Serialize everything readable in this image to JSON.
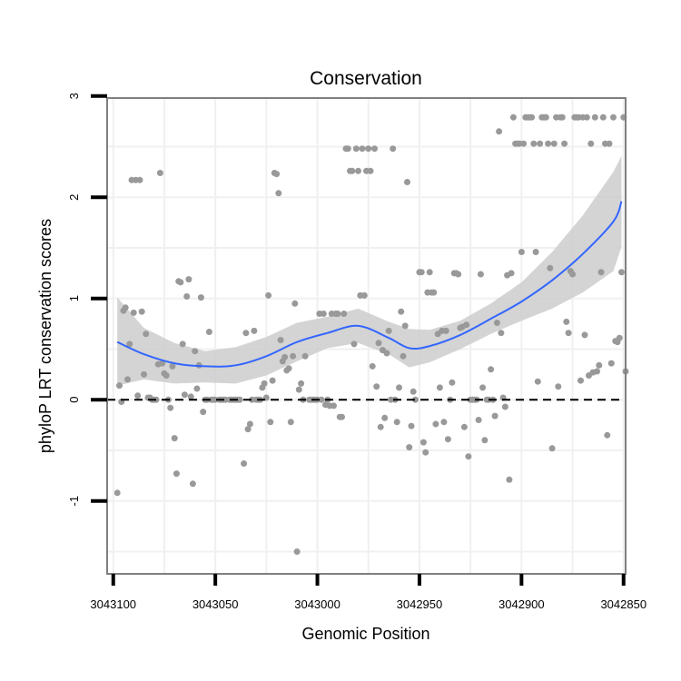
{
  "chart_data": {
    "type": "scatter",
    "title": "Conservation",
    "xlabel": "Genomic Position",
    "ylabel": "phyloP LRT conservation scores",
    "x_reversed": true,
    "xlim": [
      3043103,
      3042849
    ],
    "ylim": [
      -1.72,
      2.98
    ],
    "x_ticks": [
      3043100,
      3043050,
      3043000,
      3042950,
      3042900,
      3042850
    ],
    "x_tick_labels": [
      "3043100",
      "3043050",
      "3043000",
      "3042950",
      "3042900",
      "3042850"
    ],
    "y_ticks": [
      -1,
      0,
      1,
      2,
      3
    ],
    "y_tick_labels": [
      "-1",
      "0",
      "1",
      "2",
      "3"
    ],
    "reference_line": {
      "y": 0,
      "style": "dashed"
    },
    "grid": true,
    "colors": {
      "points": "#999999",
      "smooth_line": "#3366ff",
      "ribbon": "#cccccc",
      "panel_border": "#7f7f7f",
      "grid": "#f0f0f0",
      "reference_line": "#000000"
    },
    "smooth": {
      "x": [
        3043098,
        3043085,
        3043070,
        3043055,
        3043040,
        3043025,
        3043010,
        3042995,
        3042980,
        3042965,
        3042955,
        3042945,
        3042930,
        3042915,
        3042900,
        3042885,
        3042870,
        3042855,
        3042851
      ],
      "y": [
        0.57,
        0.45,
        0.36,
        0.33,
        0.34,
        0.43,
        0.57,
        0.66,
        0.73,
        0.61,
        0.51,
        0.53,
        0.64,
        0.8,
        0.97,
        1.18,
        1.44,
        1.76,
        1.96
      ],
      "lower": [
        0.14,
        0.2,
        0.16,
        0.17,
        0.16,
        0.24,
        0.38,
        0.51,
        0.56,
        0.45,
        0.32,
        0.37,
        0.5,
        0.65,
        0.78,
        0.9,
        1.06,
        1.27,
        1.51
      ],
      "upper": [
        1.01,
        0.71,
        0.56,
        0.48,
        0.52,
        0.62,
        0.76,
        0.82,
        0.9,
        0.77,
        0.7,
        0.69,
        0.78,
        0.95,
        1.16,
        1.46,
        1.82,
        2.25,
        2.41
      ]
    },
    "points": [
      [
        3043098,
        -0.92
      ],
      [
        3043097,
        0.14
      ],
      [
        3043096,
        -0.02
      ],
      [
        3043095,
        0.88
      ],
      [
        3043094,
        0.91
      ],
      [
        3043093,
        0.2
      ],
      [
        3043092,
        0.55
      ],
      [
        3043091,
        2.17
      ],
      [
        3043090,
        0.86
      ],
      [
        3043089,
        2.17
      ],
      [
        3043088,
        0.04
      ],
      [
        3043087,
        2.17
      ],
      [
        3043086,
        0.87
      ],
      [
        3043085,
        0.25
      ],
      [
        3043084,
        0.65
      ],
      [
        3043083,
        0.02
      ],
      [
        3043082,
        0.02
      ],
      [
        3043081,
        0.0
      ],
      [
        3043080,
        0.0
      ],
      [
        3043079,
        0.0
      ],
      [
        3043078,
        0.35
      ],
      [
        3043077,
        2.24
      ],
      [
        3043076,
        0.36
      ],
      [
        3043075,
        0.26
      ],
      [
        3043074,
        0.24
      ],
      [
        3043073,
        0.0
      ],
      [
        3043072,
        -0.08
      ],
      [
        3043071,
        0.33
      ],
      [
        3043070,
        -0.38
      ],
      [
        3043069,
        -0.73
      ],
      [
        3043068,
        1.17
      ],
      [
        3043067,
        1.16
      ],
      [
        3043066,
        0.55
      ],
      [
        3043065,
        0.05
      ],
      [
        3043064,
        1.02
      ],
      [
        3043063,
        1.19
      ],
      [
        3043062,
        0.03
      ],
      [
        3043061,
        -0.83
      ],
      [
        3043060,
        0.48
      ],
      [
        3043059,
        0.11
      ],
      [
        3043058,
        0.34
      ],
      [
        3043057,
        1.01
      ],
      [
        3043056,
        -0.12
      ],
      [
        3043055,
        0.0
      ],
      [
        3043054,
        0.0
      ],
      [
        3043053,
        0.67
      ],
      [
        3043052,
        0.0
      ],
      [
        3043051,
        0.0
      ],
      [
        3043050,
        0.0
      ],
      [
        3043048,
        0.0
      ],
      [
        3043047,
        0.0
      ],
      [
        3043046,
        0.0
      ],
      [
        3043045,
        0.0
      ],
      [
        3043043,
        0.0
      ],
      [
        3043042,
        0.0
      ],
      [
        3043041,
        0.0
      ],
      [
        3043040,
        0.0
      ],
      [
        3043039,
        0.0
      ],
      [
        3043038,
        0.0
      ],
      [
        3043036,
        -0.63
      ],
      [
        3043035,
        0.66
      ],
      [
        3043034,
        -0.29
      ],
      [
        3043033,
        -0.24
      ],
      [
        3043032,
        0.0
      ],
      [
        3043031,
        0.68
      ],
      [
        3043030,
        0.0
      ],
      [
        3043029,
        0.0
      ],
      [
        3043028,
        0.0
      ],
      [
        3043027,
        0.12
      ],
      [
        3043026,
        0.16
      ],
      [
        3043025,
        0.02
      ],
      [
        3043024,
        1.03
      ],
      [
        3043023,
        -0.22
      ],
      [
        3043022,
        0.19
      ],
      [
        3043021,
        2.24
      ],
      [
        3043020,
        2.23
      ],
      [
        3043019,
        2.04
      ],
      [
        3043018,
        0.59
      ],
      [
        3043017,
        0.38
      ],
      [
        3043016,
        0.42
      ],
      [
        3043015,
        0.29
      ],
      [
        3043014,
        0.31
      ],
      [
        3043013,
        -0.22
      ],
      [
        3043012,
        0.43
      ],
      [
        3043011,
        0.95
      ],
      [
        3043010,
        -1.5
      ],
      [
        3043009,
        0.1
      ],
      [
        3043008,
        0.16
      ],
      [
        3043007,
        0.0
      ],
      [
        3043006,
        0.43
      ],
      [
        3043004,
        0.0
      ],
      [
        3043003,
        0.0
      ],
      [
        3043002,
        0.0
      ],
      [
        3043001,
        0.0
      ],
      [
        3043000,
        0.0
      ],
      [
        3042999,
        0.85
      ],
      [
        3042998,
        0.0
      ],
      [
        3042997,
        0.85
      ],
      [
        3042996,
        -0.05
      ],
      [
        3042995,
        0.0
      ],
      [
        3042994,
        -0.06
      ],
      [
        3042993,
        0.85
      ],
      [
        3042992,
        -0.06
      ],
      [
        3042991,
        0.85
      ],
      [
        3042990,
        0.85
      ],
      [
        3042989,
        -0.17
      ],
      [
        3042988,
        -0.17
      ],
      [
        3042987,
        0.85
      ],
      [
        3042986,
        2.48
      ],
      [
        3042985,
        2.48
      ],
      [
        3042984,
        2.26
      ],
      [
        3042983,
        2.26
      ],
      [
        3042982,
        0.55
      ],
      [
        3042981,
        2.48
      ],
      [
        3042980,
        2.26
      ],
      [
        3042979,
        1.03
      ],
      [
        3042978,
        2.48
      ],
      [
        3042977,
        1.03
      ],
      [
        3042976,
        2.26
      ],
      [
        3042975,
        2.48
      ],
      [
        3042974,
        2.26
      ],
      [
        3042973,
        0.33
      ],
      [
        3042972,
        2.48
      ],
      [
        3042971,
        0.13
      ],
      [
        3042970,
        0.56
      ],
      [
        3042969,
        -0.27
      ],
      [
        3042968,
        0.49
      ],
      [
        3042967,
        -0.18
      ],
      [
        3042966,
        0.46
      ],
      [
        3042965,
        0.68
      ],
      [
        3042964,
        0.0
      ],
      [
        3042963,
        2.48
      ],
      [
        3042962,
        0.0
      ],
      [
        3042961,
        -0.22
      ],
      [
        3042960,
        0.12
      ],
      [
        3042959,
        0.87
      ],
      [
        3042958,
        0.43
      ],
      [
        3042957,
        0.73
      ],
      [
        3042956,
        2.15
      ],
      [
        3042955,
        -0.47
      ],
      [
        3042954,
        -0.26
      ],
      [
        3042953,
        0.08
      ],
      [
        3042952,
        0.0
      ],
      [
        3042950,
        1.26
      ],
      [
        3042949,
        1.26
      ],
      [
        3042948,
        -0.42
      ],
      [
        3042947,
        -0.52
      ],
      [
        3042946,
        1.06
      ],
      [
        3042945,
        1.26
      ],
      [
        3042944,
        1.06
      ],
      [
        3042943,
        1.06
      ],
      [
        3042942,
        -0.24
      ],
      [
        3042941,
        0.65
      ],
      [
        3042940,
        0.12
      ],
      [
        3042939,
        0.68
      ],
      [
        3042938,
        -0.22
      ],
      [
        3042937,
        0.68
      ],
      [
        3042936,
        -0.39
      ],
      [
        3042935,
        0.0
      ],
      [
        3042934,
        0.17
      ],
      [
        3042933,
        1.25
      ],
      [
        3042932,
        1.25
      ],
      [
        3042931,
        1.24
      ],
      [
        3042930,
        0.71
      ],
      [
        3042929,
        0.72
      ],
      [
        3042928,
        -0.27
      ],
      [
        3042927,
        0.74
      ],
      [
        3042926,
        -0.56
      ],
      [
        3042925,
        0.0
      ],
      [
        3042924,
        0.0
      ],
      [
        3042923,
        0.0
      ],
      [
        3042922,
        0.0
      ],
      [
        3042921,
        -0.2
      ],
      [
        3042920,
        1.24
      ],
      [
        3042919,
        0.12
      ],
      [
        3042918,
        -0.4
      ],
      [
        3042917,
        0.0
      ],
      [
        3042916,
        0.0
      ],
      [
        3042915,
        0.3
      ],
      [
        3042914,
        0.0
      ],
      [
        3042913,
        -0.16
      ],
      [
        3042912,
        0.76
      ],
      [
        3042911,
        2.65
      ],
      [
        3042910,
        0.66
      ],
      [
        3042909,
        0.02
      ],
      [
        3042908,
        -0.07
      ],
      [
        3042907,
        1.23
      ],
      [
        3042906,
        -0.79
      ],
      [
        3042905,
        1.25
      ],
      [
        3042904,
        2.79
      ],
      [
        3042903,
        2.53
      ],
      [
        3042902,
        2.53
      ],
      [
        3042901,
        2.53
      ],
      [
        3042900,
        1.46
      ],
      [
        3042899,
        2.53
      ],
      [
        3042898,
        2.79
      ],
      [
        3042897,
        2.79
      ],
      [
        3042896,
        2.79
      ],
      [
        3042895,
        2.79
      ],
      [
        3042894,
        2.53
      ],
      [
        3042893,
        1.46
      ],
      [
        3042892,
        0.18
      ],
      [
        3042891,
        2.53
      ],
      [
        3042890,
        2.79
      ],
      [
        3042889,
        2.79
      ],
      [
        3042888,
        2.79
      ],
      [
        3042887,
        2.53
      ],
      [
        3042886,
        1.3
      ],
      [
        3042885,
        -0.48
      ],
      [
        3042884,
        2.53
      ],
      [
        3042883,
        2.79
      ],
      [
        3042882,
        0.13
      ],
      [
        3042881,
        2.79
      ],
      [
        3042880,
        2.79
      ],
      [
        3042879,
        2.53
      ],
      [
        3042878,
        0.77
      ],
      [
        3042877,
        0.66
      ],
      [
        3042876,
        1.27
      ],
      [
        3042875,
        1.24
      ],
      [
        3042874,
        2.79
      ],
      [
        3042873,
        2.79
      ],
      [
        3042872,
        2.79
      ],
      [
        3042871,
        0.19
      ],
      [
        3042870,
        2.79
      ],
      [
        3042869,
        0.64
      ],
      [
        3042868,
        2.79
      ],
      [
        3042867,
        0.24
      ],
      [
        3042866,
        2.53
      ],
      [
        3042865,
        0.27
      ],
      [
        3042864,
        2.79
      ],
      [
        3042863,
        0.28
      ],
      [
        3042862,
        0.34
      ],
      [
        3042861,
        1.26
      ],
      [
        3042860,
        2.79
      ],
      [
        3042859,
        2.53
      ],
      [
        3042858,
        -0.35
      ],
      [
        3042857,
        2.53
      ],
      [
        3042856,
        0.36
      ],
      [
        3042855,
        2.79
      ],
      [
        3042854,
        0.58
      ],
      [
        3042853,
        0.57
      ],
      [
        3042852,
        0.61
      ],
      [
        3042851,
        1.26
      ],
      [
        3042850,
        2.79
      ],
      [
        3042849,
        0.28
      ]
    ]
  }
}
